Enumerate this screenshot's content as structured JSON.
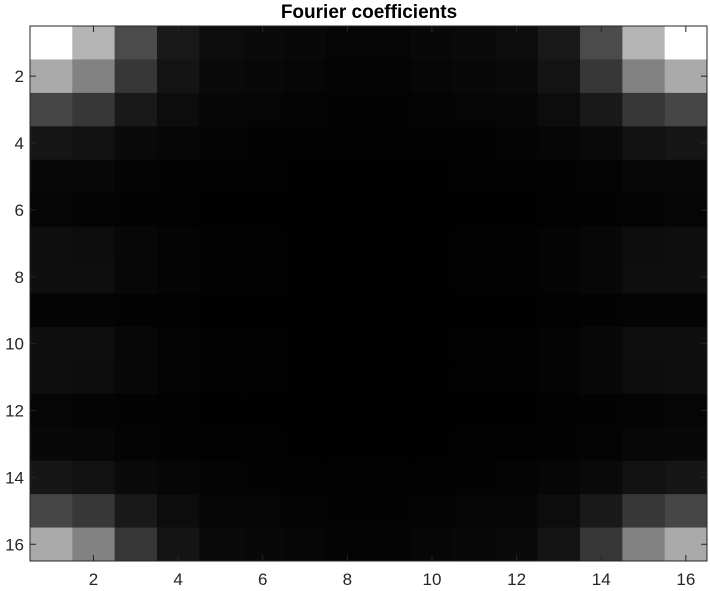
{
  "chart_data": {
    "type": "heatmap",
    "title": "Fourier coefficients",
    "xlabel": "",
    "ylabel": "",
    "colormap": "gray",
    "x": [
      1,
      2,
      3,
      4,
      5,
      6,
      7,
      8,
      9,
      10,
      11,
      12,
      13,
      14,
      15,
      16
    ],
    "y": [
      1,
      2,
      3,
      4,
      5,
      6,
      7,
      8,
      9,
      10,
      11,
      12,
      13,
      14,
      15,
      16
    ],
    "xlim": [
      0.5,
      16.5
    ],
    "ylim": [
      0.5,
      16.5
    ],
    "y_direction": "reverse",
    "xticks": [
      2,
      4,
      6,
      8,
      10,
      12,
      14,
      16
    ],
    "yticks": [
      2,
      4,
      6,
      8,
      10,
      12,
      14,
      16
    ],
    "xtick_labels": [
      "2",
      "4",
      "6",
      "8",
      "10",
      "12",
      "14",
      "16"
    ],
    "ytick_labels": [
      "2",
      "4",
      "6",
      "8",
      "10",
      "12",
      "14",
      "16"
    ],
    "grid": false,
    "values": [
      [
        255,
        180,
        75,
        25,
        12,
        10,
        8,
        5,
        5,
        8,
        10,
        12,
        25,
        75,
        180,
        255
      ],
      [
        170,
        130,
        55,
        20,
        10,
        8,
        6,
        4,
        4,
        6,
        8,
        10,
        20,
        55,
        130,
        170
      ],
      [
        70,
        55,
        25,
        12,
        6,
        5,
        4,
        3,
        3,
        4,
        5,
        6,
        12,
        25,
        55,
        70
      ],
      [
        22,
        18,
        10,
        6,
        4,
        3,
        2,
        2,
        2,
        2,
        3,
        4,
        6,
        10,
        18,
        22
      ],
      [
        8,
        7,
        4,
        3,
        2,
        2,
        1,
        1,
        1,
        1,
        2,
        2,
        3,
        4,
        7,
        8
      ],
      [
        5,
        4,
        3,
        2,
        1,
        1,
        1,
        1,
        1,
        1,
        1,
        1,
        2,
        3,
        4,
        5
      ],
      [
        14,
        13,
        8,
        4,
        2,
        2,
        1,
        1,
        1,
        1,
        2,
        2,
        4,
        8,
        13,
        14
      ],
      [
        15,
        14,
        8,
        4,
        2,
        2,
        1,
        1,
        1,
        1,
        2,
        2,
        4,
        8,
        14,
        15
      ],
      [
        4,
        4,
        3,
        2,
        1,
        1,
        1,
        1,
        1,
        1,
        1,
        1,
        2,
        3,
        4,
        4
      ],
      [
        15,
        14,
        8,
        4,
        2,
        2,
        1,
        1,
        1,
        1,
        2,
        2,
        4,
        8,
        14,
        15
      ],
      [
        14,
        13,
        8,
        4,
        2,
        2,
        1,
        1,
        1,
        1,
        2,
        2,
        4,
        8,
        13,
        14
      ],
      [
        5,
        4,
        3,
        2,
        1,
        1,
        1,
        1,
        1,
        1,
        1,
        1,
        2,
        3,
        4,
        5
      ],
      [
        8,
        7,
        4,
        3,
        2,
        2,
        1,
        1,
        1,
        1,
        2,
        2,
        3,
        4,
        7,
        8
      ],
      [
        22,
        18,
        10,
        6,
        4,
        3,
        2,
        2,
        2,
        2,
        3,
        4,
        6,
        10,
        18,
        22
      ],
      [
        70,
        55,
        25,
        12,
        6,
        5,
        4,
        3,
        3,
        4,
        5,
        6,
        12,
        25,
        55,
        70
      ],
      [
        170,
        130,
        55,
        20,
        10,
        8,
        6,
        4,
        4,
        6,
        8,
        10,
        20,
        55,
        130,
        170
      ]
    ]
  }
}
